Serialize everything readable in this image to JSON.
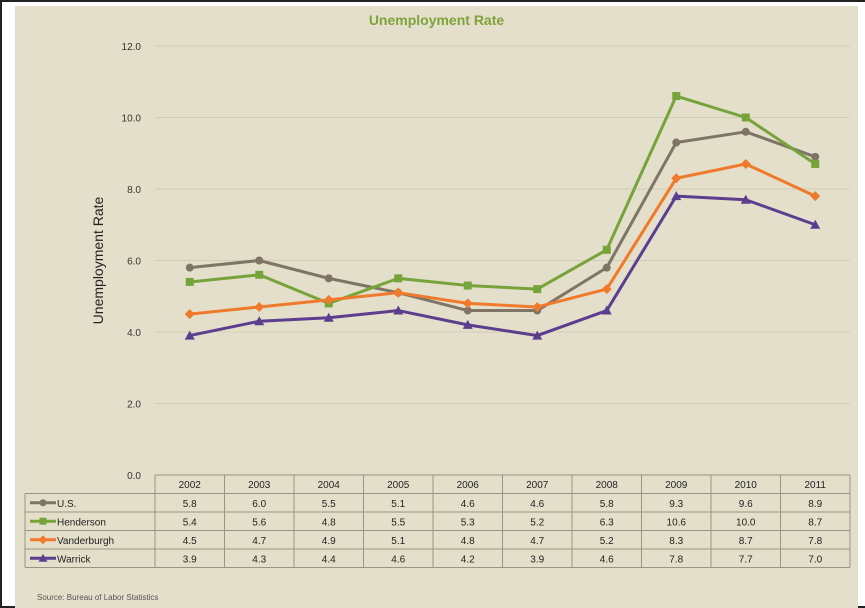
{
  "chart_data": {
    "type": "line",
    "title": "Unemployment Rate",
    "ylabel": "Unemployment Rate",
    "xlabel": "",
    "ylim": [
      0,
      12
    ],
    "yticks": [
      "0.0",
      "2.0",
      "4.0",
      "6.0",
      "8.0",
      "10.0",
      "12.0"
    ],
    "grid": true,
    "legend": "data-table",
    "categories": [
      "2002",
      "2003",
      "2004",
      "2005",
      "2006",
      "2007",
      "2008",
      "2009",
      "2010",
      "2011"
    ],
    "series": [
      {
        "name": "U.S.",
        "marker": "circle",
        "color": "#7f7567",
        "values": [
          5.8,
          6.0,
          5.5,
          5.1,
          4.6,
          4.6,
          5.8,
          9.3,
          9.6,
          8.9
        ],
        "labels": [
          "5.8",
          "6.0",
          "5.5",
          "5.1",
          "4.6",
          "4.6",
          "5.8",
          "9.3",
          "9.6",
          "8.9"
        ]
      },
      {
        "name": "Henderson",
        "marker": "square",
        "color": "#77a33b",
        "values": [
          5.4,
          5.6,
          4.8,
          5.5,
          5.3,
          5.2,
          6.3,
          10.6,
          10.0,
          8.7
        ],
        "labels": [
          "5.4",
          "5.6",
          "4.8",
          "5.5",
          "5.3",
          "5.2",
          "6.3",
          "10.6",
          "10.0",
          "8.7"
        ]
      },
      {
        "name": "Vanderburgh",
        "marker": "diamond",
        "color": "#f07a2c",
        "values": [
          4.5,
          4.7,
          4.9,
          5.1,
          4.8,
          4.7,
          5.2,
          8.3,
          8.7,
          7.8
        ],
        "labels": [
          "4.5",
          "4.7",
          "4.9",
          "5.1",
          "4.8",
          "4.7",
          "5.2",
          "8.3",
          "8.7",
          "7.8"
        ]
      },
      {
        "name": "Warrick",
        "marker": "triangle",
        "color": "#5b3e8e",
        "values": [
          3.9,
          4.3,
          4.4,
          4.6,
          4.2,
          3.9,
          4.6,
          7.8,
          7.7,
          7.0
        ],
        "labels": [
          "3.9",
          "4.3",
          "4.4",
          "4.6",
          "4.2",
          "3.9",
          "4.6",
          "7.8",
          "7.7",
          "7.0"
        ]
      }
    ]
  },
  "footer": {
    "source": "Source: Bureau of Labor Statistics"
  }
}
